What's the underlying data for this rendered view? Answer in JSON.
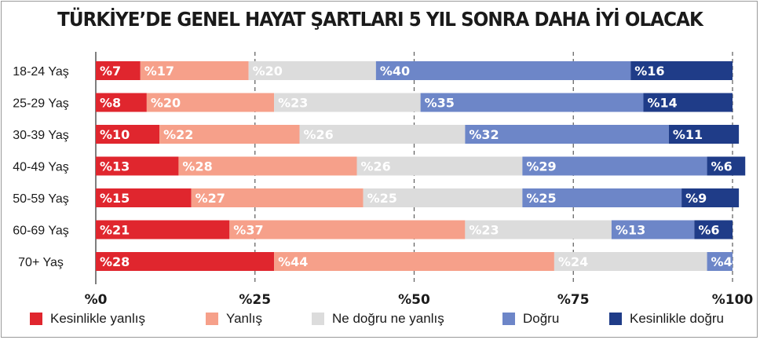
{
  "chart_data": {
    "type": "bar",
    "orientation": "horizontal",
    "stacked": true,
    "title": "TÜRKİYE’DE GENEL HAYAT ŞARTLARI 5 YIL SONRA DAHA İYİ OLACAK",
    "xlabel": "",
    "ylabel": "",
    "xlim": [
      0,
      100
    ],
    "x_ticks": [
      "%0",
      "%25",
      "%50",
      "%75",
      "%100"
    ],
    "grid": "vertical dashed",
    "legend_position": "bottom",
    "categories": [
      "18-24 Yaş",
      "25-29 Yaş",
      "30-39 Yaş",
      "40-49 Yaş",
      "50-59 Yaş",
      "60-69 Yaş",
      "70+ Yaş"
    ],
    "series": [
      {
        "name": "Kesinlikle yanlış",
        "color": "#e0262e",
        "label_color": "#ffffff",
        "values": [
          7,
          8,
          10,
          13,
          15,
          21,
          28
        ],
        "labels": [
          "%7",
          "%8",
          "%10",
          "%13",
          "%15",
          "%21",
          "%28"
        ]
      },
      {
        "name": "Yanlış",
        "color": "#f6a08a",
        "label_color": "#ffffff",
        "values": [
          17,
          20,
          22,
          28,
          27,
          37,
          44
        ],
        "labels": [
          "%17",
          "%20",
          "%22",
          "%28",
          "%27",
          "%37",
          "%44"
        ]
      },
      {
        "name": "Ne doğru ne yanlış",
        "color": "#dcdcdc",
        "label_color": "#ffffff",
        "values": [
          20,
          23,
          26,
          26,
          25,
          23,
          24
        ],
        "labels": [
          "%20",
          "%23",
          "%26",
          "%26",
          "%25",
          "%23",
          "%24"
        ]
      },
      {
        "name": "Doğru",
        "color": "#6d86c8",
        "label_color": "#ffffff",
        "values": [
          40,
          35,
          32,
          29,
          25,
          13,
          4
        ],
        "labels": [
          "%40",
          "%35",
          "%32",
          "%29",
          "%25",
          "%13",
          "%4"
        ]
      },
      {
        "name": "Kesinlikle doğru",
        "color": "#1f3c88",
        "label_color": "#ffffff",
        "values": [
          16,
          14,
          11,
          6,
          9,
          6,
          0
        ],
        "labels": [
          "%16",
          "%14",
          "%11",
          "%6",
          "%9",
          "%6",
          ""
        ]
      }
    ]
  }
}
